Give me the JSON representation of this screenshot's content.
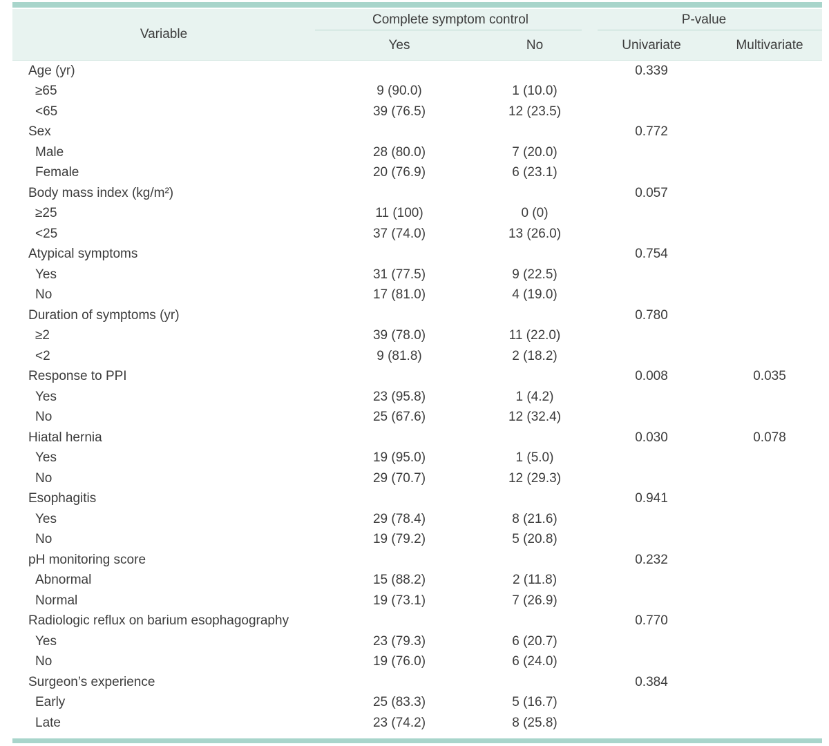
{
  "table": {
    "header": {
      "variable": "Variable",
      "group_symptom_control": "Complete symptom control",
      "group_pvalue": "P-value",
      "sub_yes": "Yes",
      "sub_no": "No",
      "sub_univariate": "Univariate",
      "sub_multivariate": "Multivariate"
    },
    "rows": [
      {
        "variable": "Age (yr)",
        "indent": false,
        "yes": "",
        "no": "",
        "univariate": "0.339",
        "multivariate": ""
      },
      {
        "variable": "≥65",
        "indent": true,
        "yes": "9 (90.0)",
        "no": "1 (10.0)",
        "univariate": "",
        "multivariate": ""
      },
      {
        "variable": "<65",
        "indent": true,
        "yes": "39 (76.5)",
        "no": "12 (23.5)",
        "univariate": "",
        "multivariate": ""
      },
      {
        "variable": "Sex",
        "indent": false,
        "yes": "",
        "no": "",
        "univariate": "0.772",
        "multivariate": ""
      },
      {
        "variable": "Male",
        "indent": true,
        "yes": "28 (80.0)",
        "no": "7 (20.0)",
        "univariate": "",
        "multivariate": ""
      },
      {
        "variable": "Female",
        "indent": true,
        "yes": "20 (76.9)",
        "no": "6 (23.1)",
        "univariate": "",
        "multivariate": ""
      },
      {
        "variable": "Body mass index (kg/m²)",
        "indent": false,
        "yes": "",
        "no": "",
        "univariate": "0.057",
        "multivariate": ""
      },
      {
        "variable": "≥25",
        "indent": true,
        "yes": "11 (100)",
        "no": "0 (0)",
        "univariate": "",
        "multivariate": ""
      },
      {
        "variable": "<25",
        "indent": true,
        "yes": "37 (74.0)",
        "no": "13 (26.0)",
        "univariate": "",
        "multivariate": ""
      },
      {
        "variable": "Atypical symptoms",
        "indent": false,
        "yes": "",
        "no": "",
        "univariate": "0.754",
        "multivariate": ""
      },
      {
        "variable": "Yes",
        "indent": true,
        "yes": "31 (77.5)",
        "no": "9 (22.5)",
        "univariate": "",
        "multivariate": ""
      },
      {
        "variable": "No",
        "indent": true,
        "yes": "17 (81.0)",
        "no": "4 (19.0)",
        "univariate": "",
        "multivariate": ""
      },
      {
        "variable": "Duration of symptoms (yr)",
        "indent": false,
        "yes": "",
        "no": "",
        "univariate": "0.780",
        "multivariate": ""
      },
      {
        "variable": "≥2",
        "indent": true,
        "yes": "39 (78.0)",
        "no": "11 (22.0)",
        "univariate": "",
        "multivariate": ""
      },
      {
        "variable": "<2",
        "indent": true,
        "yes": "9 (81.8)",
        "no": "2 (18.2)",
        "univariate": "",
        "multivariate": ""
      },
      {
        "variable": "Response to PPI",
        "indent": false,
        "yes": "",
        "no": "",
        "univariate": "0.008",
        "multivariate": "0.035"
      },
      {
        "variable": "Yes",
        "indent": true,
        "yes": "23 (95.8)",
        "no": "1 (4.2)",
        "univariate": "",
        "multivariate": ""
      },
      {
        "variable": "No",
        "indent": true,
        "yes": "25 (67.6)",
        "no": "12 (32.4)",
        "univariate": "",
        "multivariate": ""
      },
      {
        "variable": "Hiatal hernia",
        "indent": false,
        "yes": "",
        "no": "",
        "univariate": "0.030",
        "multivariate": "0.078"
      },
      {
        "variable": "Yes",
        "indent": true,
        "yes": "19 (95.0)",
        "no": "1 (5.0)",
        "univariate": "",
        "multivariate": ""
      },
      {
        "variable": "No",
        "indent": true,
        "yes": "29 (70.7)",
        "no": "12 (29.3)",
        "univariate": "",
        "multivariate": ""
      },
      {
        "variable": "Esophagitis",
        "indent": false,
        "yes": "",
        "no": "",
        "univariate": "0.941",
        "multivariate": ""
      },
      {
        "variable": "Yes",
        "indent": true,
        "yes": "29 (78.4)",
        "no": "8 (21.6)",
        "univariate": "",
        "multivariate": ""
      },
      {
        "variable": "No",
        "indent": true,
        "yes": "19 (79.2)",
        "no": "5 (20.8)",
        "univariate": "",
        "multivariate": ""
      },
      {
        "variable": "pH monitoring score",
        "indent": false,
        "yes": "",
        "no": "",
        "univariate": "0.232",
        "multivariate": ""
      },
      {
        "variable": "Abnormal",
        "indent": true,
        "yes": "15 (88.2)",
        "no": "2 (11.8)",
        "univariate": "",
        "multivariate": ""
      },
      {
        "variable": "Normal",
        "indent": true,
        "yes": "19 (73.1)",
        "no": "7 (26.9)",
        "univariate": "",
        "multivariate": ""
      },
      {
        "variable": "Radiologic reflux on barium esophagography",
        "indent": false,
        "yes": "",
        "no": "",
        "univariate": "0.770",
        "multivariate": ""
      },
      {
        "variable": "Yes",
        "indent": true,
        "yes": "23 (79.3)",
        "no": "6 (20.7)",
        "univariate": "",
        "multivariate": ""
      },
      {
        "variable": "No",
        "indent": true,
        "yes": "19 (76.0)",
        "no": "6 (24.0)",
        "univariate": "",
        "multivariate": ""
      },
      {
        "variable": "Surgeon’s experience",
        "indent": false,
        "yes": "",
        "no": "",
        "univariate": "0.384",
        "multivariate": ""
      },
      {
        "variable": "Early",
        "indent": true,
        "yes": "25 (83.3)",
        "no": "5 (16.7)",
        "univariate": "",
        "multivariate": ""
      },
      {
        "variable": "Late",
        "indent": true,
        "yes": "23 (74.2)",
        "no": "8 (25.8)",
        "univariate": "",
        "multivariate": ""
      }
    ],
    "colors": {
      "accent_bar": "#a8d5cb",
      "header_bg": "#e8f3f0",
      "rule": "#b9d8d0",
      "text": "#3c3c3c"
    }
  }
}
